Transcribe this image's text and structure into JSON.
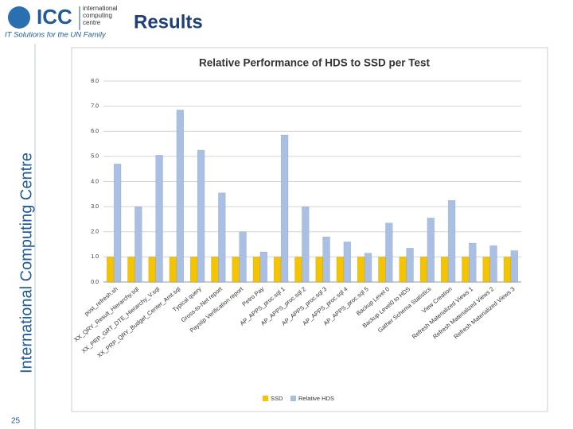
{
  "slide": {
    "logo_text": "ICC",
    "logo_subtext": [
      "international",
      "computing",
      "centre"
    ],
    "tagline": "IT Solutions for the UN Family",
    "side_title": "International Computing Centre",
    "heading": "Results",
    "page_number": "25"
  },
  "chart_data": {
    "type": "bar",
    "title": "Relative Performance of HDS to SSD per Test",
    "categories": [
      "post_refresh.sh",
      "XX_QRY_Result_Hierarchy.sql",
      "XX_PRP_GRT_DTE_Hierarchy_V.sql",
      "XX_PRP_QRY_Budget_Center_Amt.sql",
      "Typical query",
      "Gross-to-Net report",
      "Payslip Verification report",
      "Petro Pay",
      "AP_APPS_proc.sql 1",
      "AP_APPS_proc.sql 2",
      "AP_APPS_proc.sql 3",
      "AP_APPS_proc.sql 4",
      "AP_APPS_proc.sql 5",
      "Backup Level 0",
      "Backup Level0 to HDS",
      "Gather Schema Statistics",
      "View Creation",
      "Refresh Materialized Views 1",
      "Refresh Materialized Views 2",
      "Refresh Materialized Views 3"
    ],
    "series": [
      {
        "name": "SSD",
        "color": "#f5c400",
        "values": [
          1,
          1,
          1,
          1,
          1,
          1,
          1,
          1,
          1,
          1,
          1,
          1,
          1,
          1,
          1,
          1,
          1,
          1,
          1,
          1
        ]
      },
      {
        "name": "Relative HDS",
        "color": "#a9c0e4",
        "values": [
          4.7,
          3.0,
          5.05,
          6.85,
          5.25,
          3.55,
          2.0,
          1.2,
          5.85,
          3.0,
          1.8,
          1.6,
          1.15,
          2.35,
          1.35,
          2.55,
          3.25,
          1.55,
          1.45,
          1.25
        ]
      }
    ],
    "ylim": [
      0,
      8
    ],
    "yticks": [
      {
        "value": 0,
        "label": "0.0"
      },
      {
        "value": 1,
        "label": "1.0"
      },
      {
        "value": 2,
        "label": "2.0"
      },
      {
        "value": 3,
        "label": "3.0"
      },
      {
        "value": 4,
        "label": "4.0"
      },
      {
        "value": 5,
        "label": "5.0"
      },
      {
        "value": 6,
        "label": "6.0"
      },
      {
        "value": 7,
        "label": "7.0"
      },
      {
        "value": 8,
        "label": "8.0"
      }
    ],
    "grid": true,
    "legend": "bottom"
  }
}
